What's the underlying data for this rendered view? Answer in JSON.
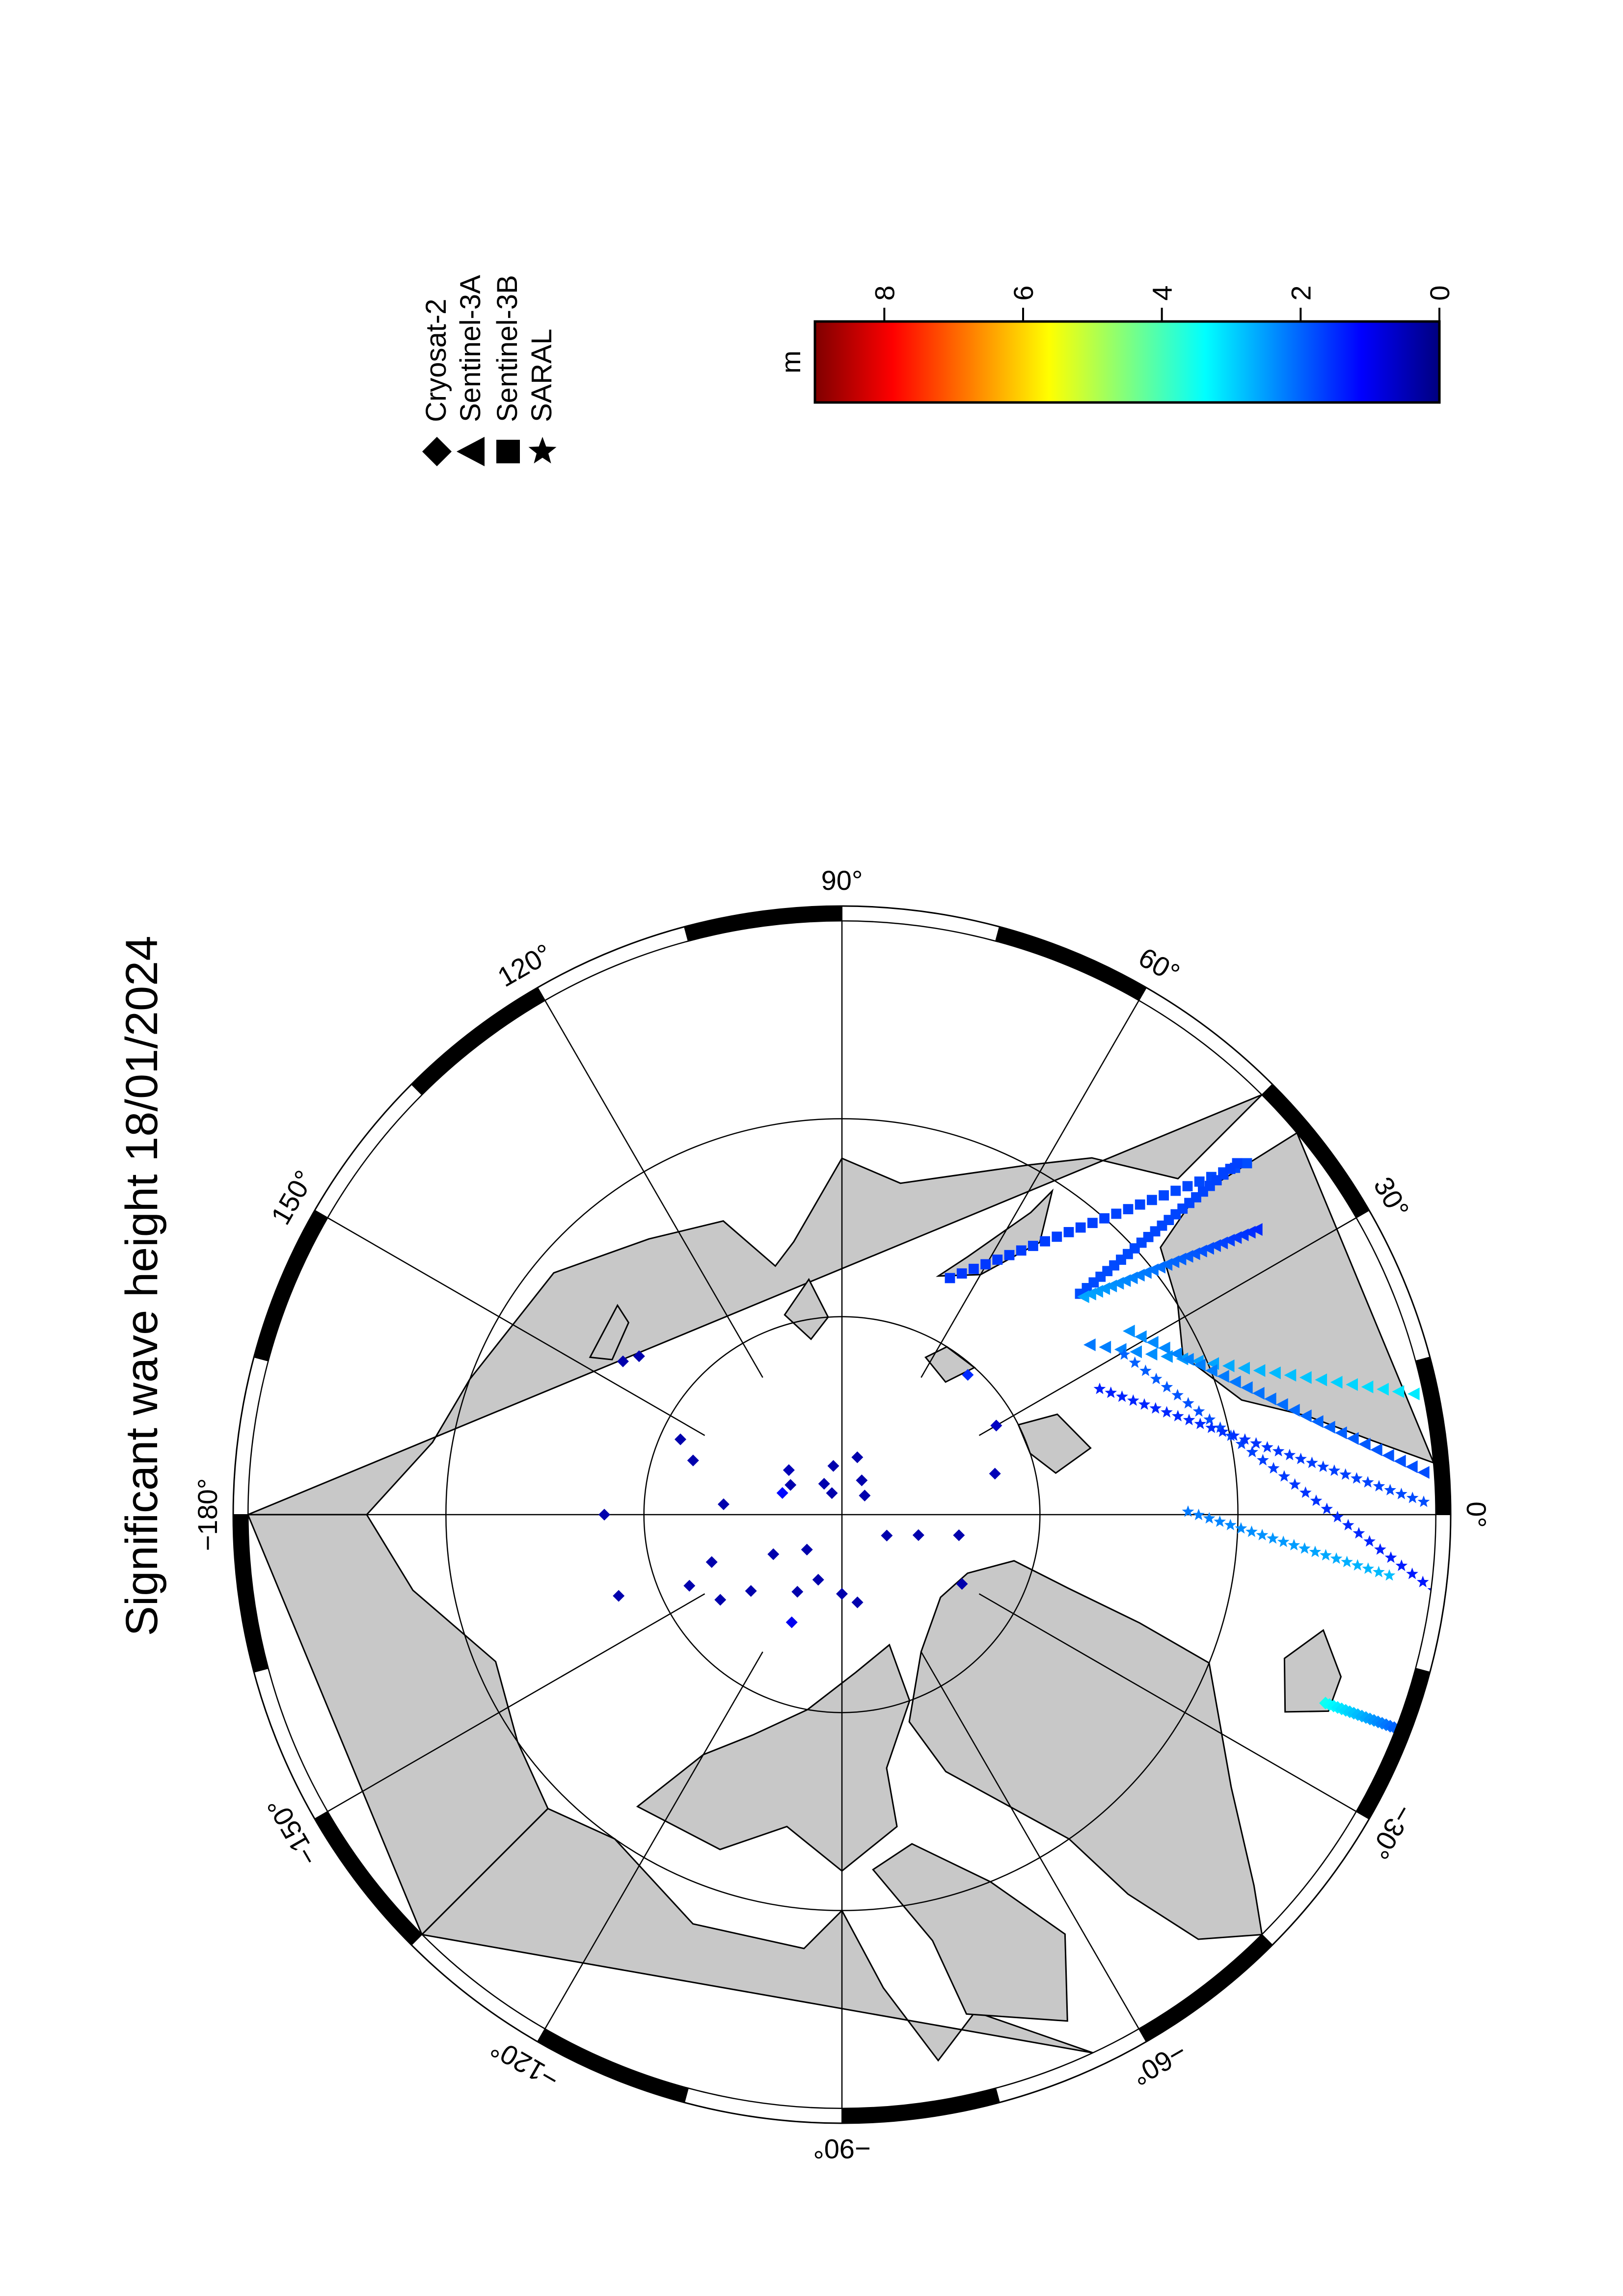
{
  "map": {
    "title": "Significant wave height 18/01/2024",
    "projection": "north-polar-stereographic",
    "orientation_note": "",
    "meridian_labels": [
      {
        "lon": 90,
        "text": "90°"
      },
      {
        "lon": 60,
        "text": "60°"
      },
      {
        "lon": 30,
        "text": "30°"
      },
      {
        "lon": 0,
        "text": "0°"
      },
      {
        "lon": -30,
        "text": "−30°"
      },
      {
        "lon": -60,
        "text": "−60°"
      },
      {
        "lon": -90,
        "text": "−90°"
      },
      {
        "lon": -120,
        "text": "−120°"
      },
      {
        "lon": -150,
        "text": "−150°"
      },
      {
        "lon": -180,
        "text": "−180°"
      },
      {
        "lon": 150,
        "text": "150°"
      },
      {
        "lon": 120,
        "text": "120°"
      }
    ],
    "colors": {
      "land": "#c8c8c8",
      "ocean": "#ffffff",
      "graticule": "#000000",
      "frame_dark": "#000000",
      "frame_light": "#ffffff"
    }
  },
  "legend": {
    "items": [
      {
        "symbol": "diamond-icon",
        "label": "Cryosat-2"
      },
      {
        "symbol": "triangle-icon",
        "label": "Sentinel-3A"
      },
      {
        "symbol": "square-icon",
        "label": "Sentinel-3B"
      },
      {
        "symbol": "star-icon",
        "label": "SARAL"
      }
    ]
  },
  "colorbar": {
    "unit": "m",
    "min": 0,
    "max": 9,
    "ticks": [
      {
        "value": 0,
        "label": "0"
      },
      {
        "value": 2,
        "label": "2"
      },
      {
        "value": 4,
        "label": "4"
      },
      {
        "value": 6,
        "label": "6"
      },
      {
        "value": 8,
        "label": "8"
      }
    ],
    "colormap": [
      "#00007f",
      "#0000ff",
      "#007fff",
      "#00ffff",
      "#7fff7f",
      "#ffff00",
      "#ff7f00",
      "#ff0000",
      "#7f0000"
    ]
  },
  "observations": {
    "note": "",
    "tracks": [
      {
        "satellite": "Sentinel-3B",
        "swh_start": 1.6,
        "swh_end": 1.8,
        "n": 26
      },
      {
        "satellite": "Sentinel-3B",
        "swh_start": 1.8,
        "swh_end": 1.7,
        "n": 24
      },
      {
        "satellite": "Sentinel-3A",
        "swh_start": 2.6,
        "swh_end": 1.5,
        "n": 26
      },
      {
        "satellite": "Sentinel-3A",
        "swh_start": 2.2,
        "swh_end": 3.2,
        "n": 22
      },
      {
        "satellite": "Sentinel-3A",
        "swh_start": 2.4,
        "swh_end": 1.8,
        "n": 26
      },
      {
        "satellite": "SARAL",
        "swh_start": 2.0,
        "swh_end": 1.3,
        "n": 30
      },
      {
        "satellite": "SARAL",
        "swh_start": 1.4,
        "swh_end": 1.8,
        "n": 30
      },
      {
        "satellite": "SARAL",
        "swh_start": 2.2,
        "swh_end": 2.8,
        "n": 20
      },
      {
        "satellite": "Cryosat-2",
        "swh_start": 3.5,
        "swh_end": 2.0,
        "n": 18
      }
    ],
    "points": [
      {
        "satellite": "Cryosat-2",
        "lat": 88.5,
        "lon": 40,
        "swh": 0.4
      },
      {
        "satellite": "Cryosat-2",
        "lat": 88.0,
        "lon": 60,
        "swh": 0.4
      },
      {
        "satellite": "Cryosat-2",
        "lat": 87.0,
        "lon": 75,
        "swh": 0.4
      },
      {
        "satellite": "Cryosat-2",
        "lat": 88.8,
        "lon": 115,
        "swh": 0.4
      },
      {
        "satellite": "Cryosat-2",
        "lat": 88.2,
        "lon": 120,
        "swh": 0.4
      },
      {
        "satellite": "Cryosat-2",
        "lat": 87.5,
        "lon": 100,
        "swh": 0.4
      },
      {
        "satellite": "Cryosat-2",
        "lat": 86.5,
        "lon": 140,
        "swh": 0.5
      },
      {
        "satellite": "Cryosat-2",
        "lat": 87.0,
        "lon": 150,
        "swh": 0.4
      },
      {
        "satellite": "Cryosat-2",
        "lat": 86.8,
        "lon": 160,
        "swh": 1.2
      },
      {
        "satellite": "Cryosat-2",
        "lat": 84.0,
        "lon": 175,
        "swh": 0.4
      },
      {
        "satellite": "Cryosat-2",
        "lat": 82.0,
        "lon": 160,
        "swh": 0.4
      },
      {
        "satellite": "Cryosat-2",
        "lat": 81.0,
        "lon": 155,
        "swh": 0.4
      },
      {
        "satellite": "Cryosat-2",
        "lat": 87.5,
        "lon": -135,
        "swh": 0.4
      },
      {
        "satellite": "Cryosat-2",
        "lat": 86.0,
        "lon": -150,
        "swh": 0.4
      },
      {
        "satellite": "Cryosat-2",
        "lat": 86.5,
        "lon": -110,
        "swh": 0.4
      },
      {
        "satellite": "Cryosat-2",
        "lat": 85.5,
        "lon": -120,
        "swh": 0.4
      },
      {
        "satellite": "Cryosat-2",
        "lat": 84.0,
        "lon": -115,
        "swh": 1.0
      },
      {
        "satellite": "Cryosat-2",
        "lat": 86.0,
        "lon": -90,
        "swh": 0.4
      },
      {
        "satellite": "Cryosat-2",
        "lat": 85.5,
        "lon": -80,
        "swh": 0.4
      },
      {
        "satellite": "Cryosat-2",
        "lat": 84.0,
        "lon": -140,
        "swh": 0.4
      },
      {
        "satellite": "Cryosat-2",
        "lat": 82.5,
        "lon": -145,
        "swh": 0.4
      },
      {
        "satellite": "Cryosat-2",
        "lat": 81.5,
        "lon": -155,
        "swh": 0.4
      },
      {
        "satellite": "Cryosat-2",
        "lat": 83.0,
        "lon": -160,
        "swh": 0.4
      },
      {
        "satellite": "Cryosat-2",
        "lat": 78.0,
        "lon": -160,
        "swh": 0.4
      },
      {
        "satellite": "Cryosat-2",
        "lat": 78.0,
        "lon": -180,
        "swh": 0.4
      },
      {
        "satellite": "Cryosat-2",
        "lat": 87.5,
        "lon": -25,
        "swh": 0.4
      },
      {
        "satellite": "Cryosat-2",
        "lat": 86.0,
        "lon": -15,
        "swh": 0.4
      },
      {
        "satellite": "Cryosat-2",
        "lat": 84.0,
        "lon": -10,
        "swh": 0.4
      },
      {
        "satellite": "Cryosat-2",
        "lat": 83.0,
        "lon": -30,
        "swh": 0.4
      },
      {
        "satellite": "Cryosat-2",
        "lat": 82.0,
        "lon": 15,
        "swh": 0.5
      },
      {
        "satellite": "Cryosat-2",
        "lat": 81.0,
        "lon": 30,
        "swh": 0.6
      },
      {
        "satellite": "Cryosat-2",
        "lat": 80.5,
        "lon": 48,
        "swh": 1.5
      },
      {
        "satellite": "Cryosat-2",
        "lat": 77.0,
        "lon": 142,
        "swh": 0.4
      },
      {
        "satellite": "Cryosat-2",
        "lat": 76.5,
        "lon": 145,
        "swh": 0.4
      }
    ]
  }
}
